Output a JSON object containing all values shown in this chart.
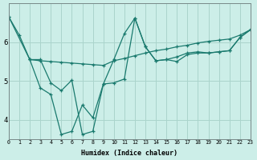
{
  "xlabel": "Humidex (Indice chaleur)",
  "bg_color": "#cceee8",
  "line_color": "#1a7a6e",
  "grid_color": "#aad4cc",
  "xlim": [
    0,
    23
  ],
  "ylim": [
    3.5,
    7.0
  ],
  "xtick_labels": [
    "0",
    "1",
    "2",
    "3",
    "4",
    "5",
    "6",
    "7",
    "8",
    "9",
    "10",
    "11",
    "12",
    "13",
    "14",
    "15",
    "16",
    "17",
    "18",
    "19",
    "20",
    "21",
    "22",
    "23"
  ],
  "ytick_vals": [
    4,
    5,
    6
  ],
  "series": [
    {
      "x": [
        0,
        1,
        2,
        3,
        4,
        5,
        6,
        7,
        8,
        9,
        10,
        11,
        12,
        13,
        14,
        15,
        16,
        17,
        18,
        19,
        20,
        21,
        22,
        23
      ],
      "y": [
        6.65,
        6.18,
        5.55,
        4.82,
        4.65,
        3.62,
        3.7,
        4.38,
        4.05,
        4.92,
        5.55,
        6.22,
        6.62,
        5.88,
        5.52,
        5.55,
        5.5,
        5.68,
        5.72,
        5.72,
        5.75,
        5.78,
        6.12,
        6.32
      ]
    },
    {
      "x": [
        0,
        2,
        3,
        4,
        5,
        6,
        7,
        8,
        9,
        10,
        11,
        12,
        13,
        14,
        15,
        16,
        17,
        18,
        19,
        20,
        21,
        22,
        23
      ],
      "y": [
        6.65,
        5.55,
        5.52,
        5.5,
        5.48,
        5.46,
        5.44,
        5.42,
        5.4,
        5.52,
        5.58,
        5.65,
        5.72,
        5.78,
        5.82,
        5.88,
        5.92,
        5.98,
        6.02,
        6.05,
        6.08,
        6.18,
        6.32
      ]
    },
    {
      "x": [
        2,
        3,
        4,
        5,
        6,
        7,
        8,
        9,
        10,
        11,
        12,
        13,
        14,
        15,
        16,
        17,
        18,
        19,
        20,
        21,
        22,
        23
      ],
      "y": [
        5.55,
        5.55,
        4.95,
        4.75,
        5.02,
        3.62,
        3.7,
        4.92,
        4.95,
        5.05,
        6.62,
        5.88,
        5.52,
        5.55,
        5.62,
        5.72,
        5.75,
        5.72,
        5.75,
        5.78,
        6.12,
        6.32
      ]
    }
  ]
}
